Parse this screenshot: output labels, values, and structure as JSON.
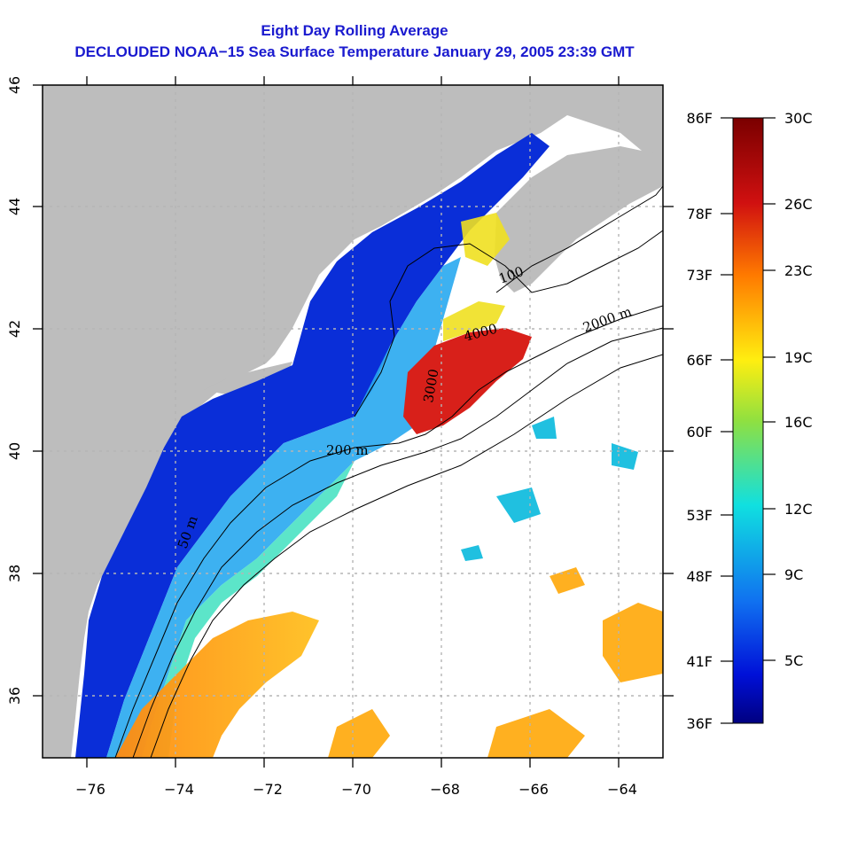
{
  "title": "Eight Day Rolling Average",
  "subtitle": "DECLOUDED NOAA−15 Sea Surface Temperature January 29, 2005 23:39 GMT",
  "map": {
    "lon_range": [
      -77,
      -63
    ],
    "lat_range": [
      35,
      46
    ],
    "lon_ticks": [
      "−76",
      "−74",
      "−72",
      "−70",
      "−68",
      "−66",
      "−64"
    ],
    "lat_ticks": [
      "46",
      "44",
      "42",
      "40",
      "38",
      "36"
    ],
    "depth_labels": [
      "50 m",
      "200 m",
      "2000 m",
      "100",
      "4000",
      "3000"
    ],
    "colors": {
      "land": "#bdbdbd",
      "no_data": "#ffffff",
      "contour": "#000000",
      "gridline": "#b5b5b5"
    }
  },
  "colorbar": {
    "fahrenheit_labels": [
      "86F",
      "78F",
      "73F",
      "66F",
      "60F",
      "53F",
      "48F",
      "41F",
      "36F"
    ],
    "celsius_labels": [
      "30C",
      "26C",
      "23C",
      "19C",
      "16C",
      "12C",
      "9C",
      "5C"
    ],
    "range_c": [
      2,
      30
    ],
    "colors": [
      "#7a0000",
      "#d01010",
      "#ff7a00",
      "#ffee10",
      "#90e040",
      "#10e0e0",
      "#1070f0",
      "#0010d8",
      "#000080"
    ]
  }
}
